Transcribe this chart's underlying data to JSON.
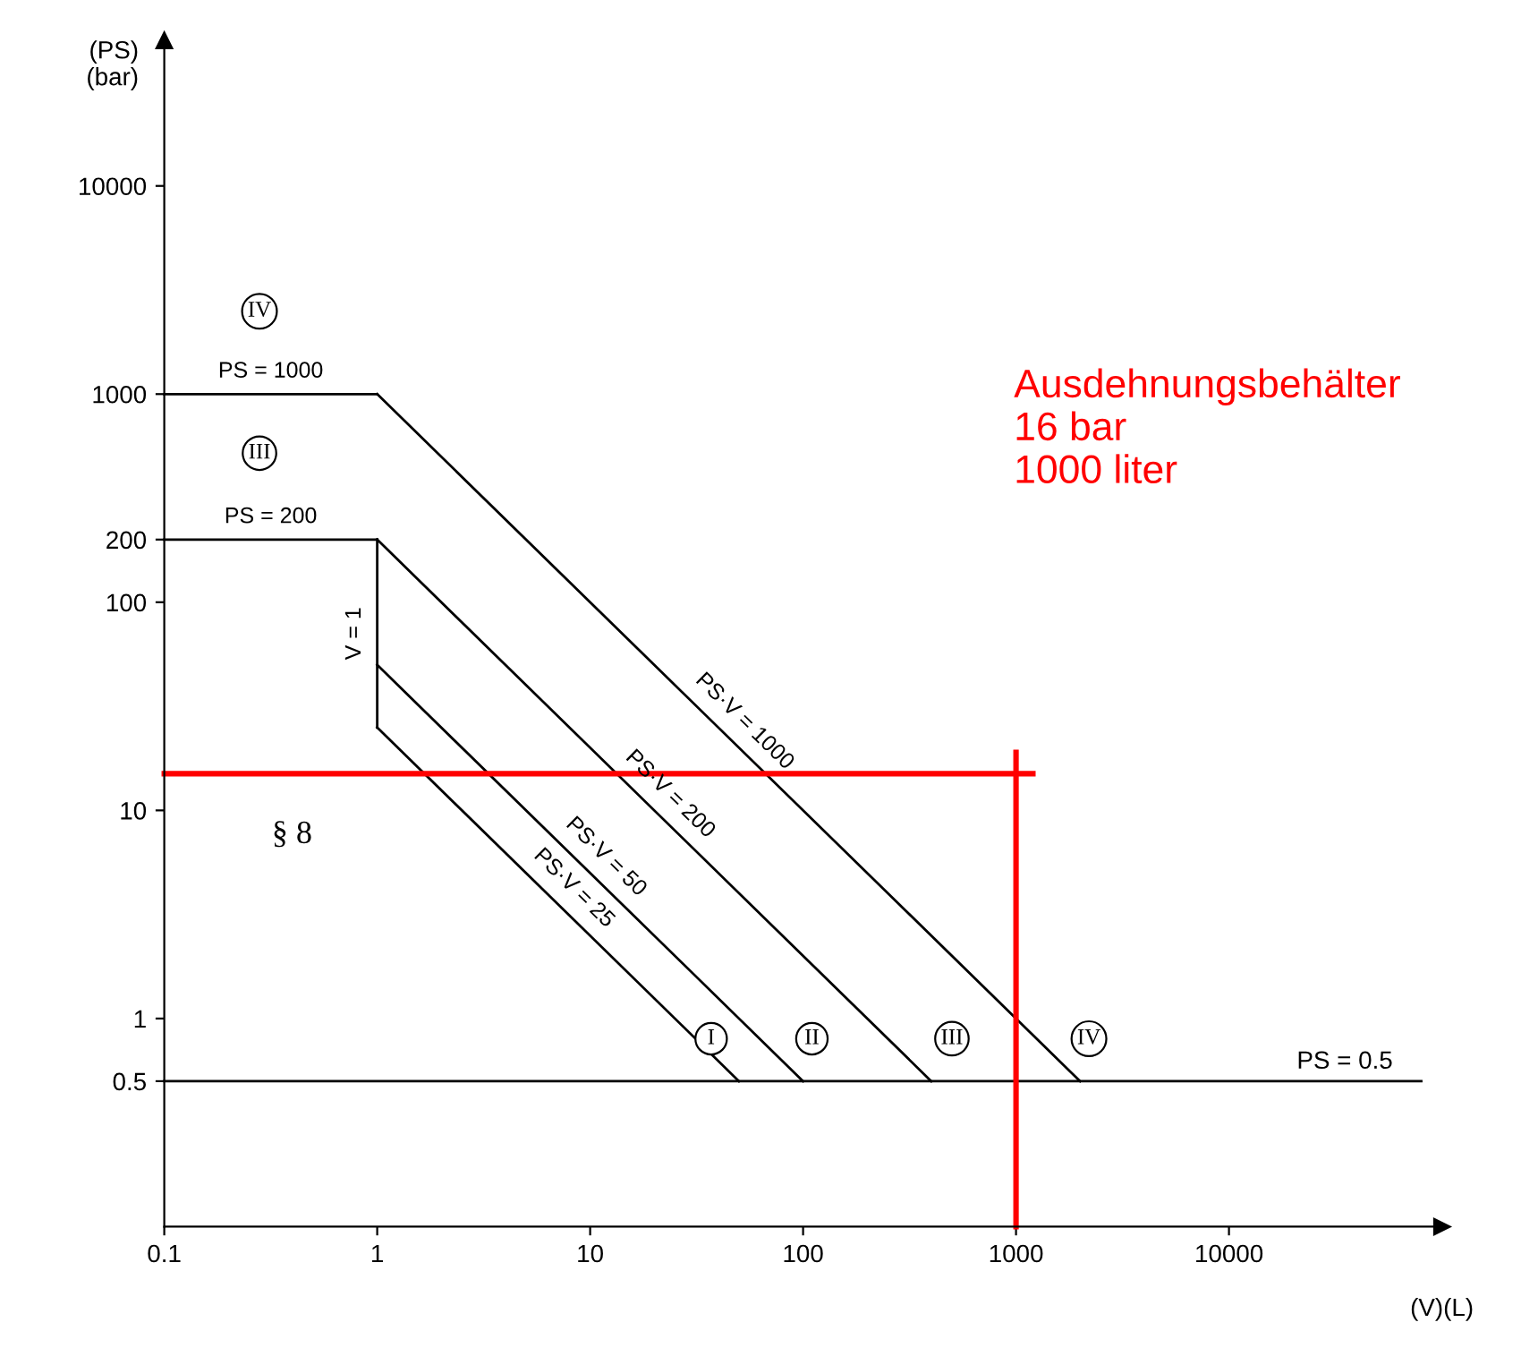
{
  "chart_data": {
    "type": "line",
    "ylabel": "(PS)\n(bar)",
    "xlabel": "(V)(L)",
    "log": "xy",
    "xlim": [
      0.1,
      100000
    ],
    "ylim": [
      0.1,
      50000
    ],
    "xticks": [
      0.1,
      1,
      10,
      100,
      1000,
      10000
    ],
    "yticks": [
      0.5,
      1,
      10,
      100,
      200,
      1000,
      10000
    ],
    "grid": false,
    "legend": false,
    "marker": "none",
    "line_style": "solid",
    "series": [
      {
        "name": "PS = 1000",
        "color": "#000000",
        "x": [
          0.1,
          1
        ],
        "values": [
          1000,
          1000
        ]
      },
      {
        "name": "PS·V = 1000",
        "color": "#000000",
        "x": [
          1,
          2000
        ],
        "values": [
          1000,
          0.5
        ]
      },
      {
        "name": "PS = 200",
        "color": "#000000",
        "x": [
          0.1,
          1
        ],
        "values": [
          200,
          200
        ]
      },
      {
        "name": "PS·V = 200",
        "color": "#000000",
        "x": [
          1,
          400
        ],
        "values": [
          200,
          0.5
        ]
      },
      {
        "name": "V = 1",
        "color": "#000000",
        "x": [
          1,
          1
        ],
        "values": [
          200,
          25
        ]
      },
      {
        "name": "PS·V = 50",
        "color": "#000000",
        "x": [
          1,
          100
        ],
        "values": [
          50,
          0.5
        ]
      },
      {
        "name": "PS·V = 25",
        "color": "#000000",
        "x": [
          1,
          50
        ],
        "values": [
          25,
          0.5
        ]
      },
      {
        "color": "#000000",
        "x": [
          0.1,
          80000
        ],
        "values": [
          0.5,
          0.5
        ]
      },
      {
        "color": "#ff0000",
        "x": [
          0.1,
          1200
        ],
        "values": [
          15,
          15
        ]
      },
      {
        "color": "#ff0000",
        "x": [
          1000,
          1000
        ],
        "values": [
          0.1,
          19
        ]
      }
    ],
    "annotations": [
      {
        "text": "IV",
        "x": 0.28,
        "y": 2500
      },
      {
        "text": "III",
        "x": 0.28,
        "y": 520
      },
      {
        "text": "I",
        "x": 37,
        "y": 0.8
      },
      {
        "text": "II",
        "x": 110,
        "y": 0.8
      },
      {
        "text": "III",
        "x": 500,
        "y": 0.8
      },
      {
        "text": "IV",
        "x": 2200,
        "y": 0.8
      },
      {
        "text": "PS = 0.5",
        "x": 35000,
        "y": 0.5
      },
      "§ 8",
      "Ausdehnungsbehälter\n16 bar\n1000 liter"
    ]
  }
}
